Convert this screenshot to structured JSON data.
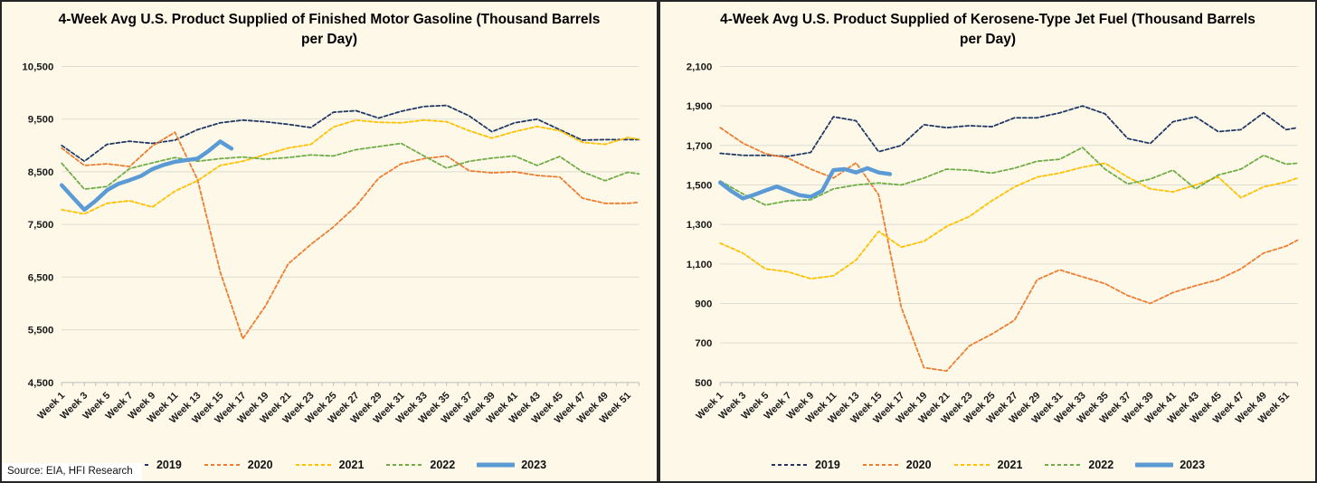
{
  "page": {
    "source_note": "Source: EIA, HFI Research"
  },
  "chart_data": [
    {
      "type": "line",
      "title": "4-Week Avg U.S. Product Supplied of Finished Motor Gasoline  (Thousand Barrels per Day)",
      "xlabel": "",
      "ylabel": "",
      "ylim": [
        4500,
        10500
      ],
      "ytick_step": 1000,
      "grid": "horizontal",
      "legend_position": "bottom",
      "x_default": [
        1,
        3,
        5,
        7,
        9,
        11,
        13,
        15,
        17,
        19,
        21,
        23,
        25,
        27,
        29,
        31,
        33,
        35,
        37,
        39,
        41,
        43,
        45,
        47,
        49,
        51,
        52
      ],
      "x_tick_labels": [
        "Week 1",
        "Week 3",
        "Week 5",
        "Week 7",
        "Week 9",
        "Week 11",
        "Week 13",
        "Week 15",
        "Week 17",
        "Week 19",
        "Week 21",
        "Week 23",
        "Week 25",
        "Week 27",
        "Week 29",
        "Week 31",
        "Week 33",
        "Week 35",
        "Week 37",
        "Week 39",
        "Week 41",
        "Week 43",
        "Week 45",
        "Week 47",
        "Week 49",
        "Week 51"
      ],
      "series": [
        {
          "name": "2019",
          "color": "#1F3864",
          "style": "dashed",
          "width": 1.8,
          "values": [
            9000,
            8700,
            9020,
            9080,
            9040,
            9100,
            9300,
            9430,
            9480,
            9450,
            9400,
            9340,
            9630,
            9660,
            9520,
            9650,
            9740,
            9760,
            9560,
            9260,
            9430,
            9500,
            9300,
            9100,
            9110,
            9110,
            9110
          ]
        },
        {
          "name": "2020",
          "color": "#ED7D31",
          "style": "dashed",
          "width": 1.8,
          "values": [
            8950,
            8620,
            8650,
            8600,
            8990,
            9250,
            8350,
            6600,
            5330,
            5950,
            6750,
            7120,
            7450,
            7850,
            8380,
            8650,
            8750,
            8800,
            8520,
            8480,
            8500,
            8430,
            8400,
            8000,
            7900,
            7900,
            7920
          ]
        },
        {
          "name": "2021",
          "color": "#FFC000",
          "style": "dashed",
          "width": 1.8,
          "values": [
            7780,
            7700,
            7900,
            7950,
            7830,
            8130,
            8330,
            8620,
            8700,
            8830,
            8950,
            9020,
            9350,
            9480,
            9440,
            9430,
            9480,
            9450,
            9280,
            9140,
            9260,
            9360,
            9280,
            9060,
            9020,
            9150,
            9120
          ]
        },
        {
          "name": "2022",
          "color": "#70AD47",
          "style": "dashed",
          "width": 1.8,
          "values": [
            8660,
            8170,
            8220,
            8560,
            8670,
            8770,
            8700,
            8750,
            8780,
            8740,
            8770,
            8820,
            8800,
            8920,
            8980,
            9040,
            8800,
            8570,
            8700,
            8760,
            8800,
            8620,
            8790,
            8500,
            8330,
            8490,
            8460
          ]
        },
        {
          "name": "2023",
          "color": "#5B9BD5",
          "style": "solid",
          "width": 4.5,
          "x": [
            1,
            2,
            3,
            4,
            5,
            6,
            7,
            8,
            9,
            10,
            11,
            12,
            13,
            14,
            15,
            16
          ],
          "values": [
            8245,
            8010,
            7780,
            7950,
            8150,
            8270,
            8340,
            8420,
            8550,
            8630,
            8690,
            8720,
            8750,
            8900,
            9075,
            8940
          ]
        }
      ]
    },
    {
      "type": "line",
      "title": "4-Week Avg U.S. Product Supplied of Kerosene-Type Jet Fuel  (Thousand Barrels per Day)",
      "xlabel": "",
      "ylabel": "",
      "ylim": [
        500,
        2100
      ],
      "ytick_step": 200,
      "grid": "horizontal",
      "legend_position": "bottom",
      "x_default": [
        1,
        3,
        5,
        7,
        9,
        11,
        13,
        15,
        17,
        19,
        21,
        23,
        25,
        27,
        29,
        31,
        33,
        35,
        37,
        39,
        41,
        43,
        45,
        47,
        49,
        51,
        52
      ],
      "x_tick_labels": [
        "Week 1",
        "Week 3",
        "Week 5",
        "Week 7",
        "Week 9",
        "Week 11",
        "Week 13",
        "Week 15",
        "Week 17",
        "Week 19",
        "Week 21",
        "Week 23",
        "Week 25",
        "Week 27",
        "Week 29",
        "Week 31",
        "Week 33",
        "Week 35",
        "Week 37",
        "Week 39",
        "Week 41",
        "Week 43",
        "Week 45",
        "Week 47",
        "Week 49",
        "Week 51"
      ],
      "series": [
        {
          "name": "2019",
          "color": "#1F3864",
          "style": "dashed",
          "width": 1.8,
          "values": [
            1660,
            1650,
            1650,
            1645,
            1665,
            1845,
            1825,
            1668,
            1700,
            1805,
            1790,
            1800,
            1795,
            1840,
            1840,
            1865,
            1900,
            1860,
            1735,
            1710,
            1820,
            1845,
            1770,
            1780,
            1865,
            1780,
            1790
          ]
        },
        {
          "name": "2020",
          "color": "#ED7D31",
          "style": "dashed",
          "width": 1.8,
          "values": [
            1790,
            1712,
            1658,
            1636,
            1580,
            1535,
            1612,
            1450,
            880,
            575,
            558,
            685,
            745,
            815,
            1020,
            1070,
            1035,
            1000,
            940,
            900,
            955,
            990,
            1020,
            1075,
            1155,
            1190,
            1220
          ]
        },
        {
          "name": "2021",
          "color": "#FFC000",
          "style": "dashed",
          "width": 1.8,
          "values": [
            1205,
            1155,
            1075,
            1060,
            1025,
            1040,
            1120,
            1265,
            1185,
            1215,
            1290,
            1340,
            1420,
            1490,
            1540,
            1560,
            1590,
            1610,
            1540,
            1480,
            1465,
            1500,
            1540,
            1435,
            1490,
            1515,
            1535
          ]
        },
        {
          "name": "2022",
          "color": "#70AD47",
          "style": "dashed",
          "width": 1.8,
          "values": [
            1520,
            1455,
            1398,
            1420,
            1425,
            1480,
            1500,
            1510,
            1500,
            1535,
            1580,
            1575,
            1560,
            1585,
            1620,
            1630,
            1690,
            1580,
            1505,
            1530,
            1575,
            1480,
            1550,
            1580,
            1650,
            1605,
            1610
          ]
        },
        {
          "name": "2023",
          "color": "#5B9BD5",
          "style": "solid",
          "width": 4.5,
          "x": [
            1,
            2,
            3,
            4,
            5,
            6,
            7,
            8,
            9,
            10,
            11,
            12,
            13,
            14,
            15,
            16
          ],
          "values": [
            1512,
            1468,
            1432,
            1450,
            1472,
            1492,
            1470,
            1448,
            1440,
            1470,
            1575,
            1580,
            1563,
            1585,
            1563,
            1555
          ]
        }
      ]
    }
  ]
}
